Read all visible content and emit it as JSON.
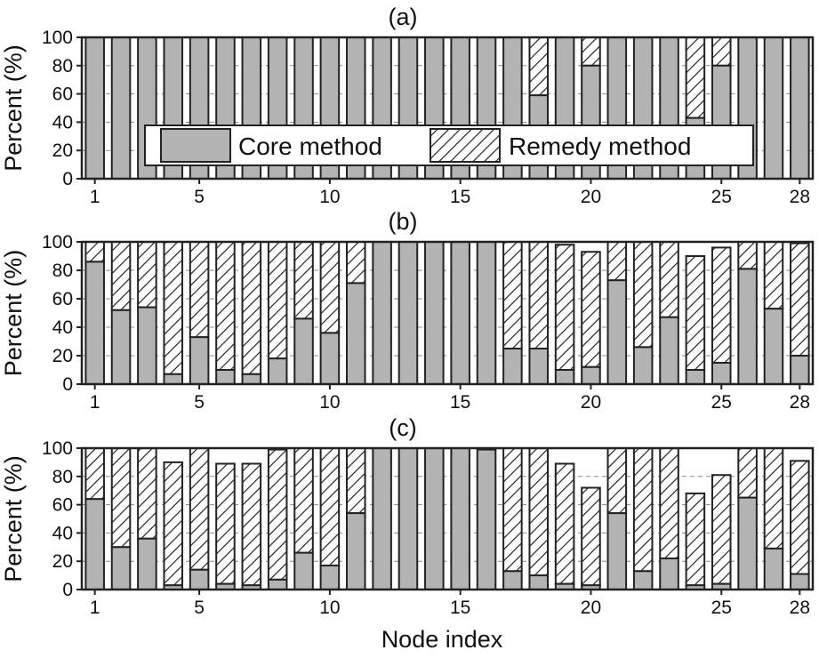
{
  "figure": {
    "xlabel": "Node index",
    "colors": {
      "core": "#b3b3b3",
      "remedy_bg": "#ffffff",
      "hatch": "#222222",
      "axis": "#222222",
      "grid": "#888888"
    }
  },
  "legend": {
    "core_label": "Core method",
    "remedy_label": "Remedy method"
  },
  "chart_data": [
    {
      "type": "bar",
      "stacked": true,
      "title": "(a)",
      "ylabel": "Percent (%)",
      "xlabel": "",
      "ylim": [
        0,
        100
      ],
      "yticks": [
        0,
        20,
        40,
        60,
        80,
        100
      ],
      "xticks": [
        1,
        5,
        10,
        15,
        20,
        25,
        28
      ],
      "grid": "horizontal dashed",
      "legend_position": "lower-center",
      "x": [
        1,
        2,
        3,
        4,
        5,
        6,
        7,
        8,
        9,
        10,
        11,
        12,
        13,
        14,
        15,
        16,
        17,
        18,
        19,
        20,
        21,
        22,
        23,
        24,
        25,
        26,
        27,
        28
      ],
      "series": [
        {
          "name": "Core method",
          "values": [
            100,
            100,
            100,
            100,
            100,
            100,
            100,
            100,
            100,
            100,
            100,
            100,
            100,
            100,
            100,
            100,
            100,
            59,
            100,
            80,
            100,
            100,
            100,
            43,
            80,
            100,
            100,
            100
          ]
        },
        {
          "name": "Remedy method",
          "values": [
            0,
            0,
            0,
            0,
            0,
            0,
            0,
            0,
            0,
            0,
            0,
            0,
            0,
            0,
            0,
            0,
            0,
            41,
            0,
            20,
            0,
            0,
            0,
            57,
            20,
            0,
            0,
            0
          ]
        }
      ]
    },
    {
      "type": "bar",
      "stacked": true,
      "title": "(b)",
      "ylabel": "Percent (%)",
      "xlabel": "",
      "ylim": [
        0,
        100
      ],
      "yticks": [
        0,
        20,
        40,
        60,
        80,
        100
      ],
      "xticks": [
        1,
        5,
        10,
        15,
        20,
        25,
        28
      ],
      "grid": "horizontal dashed",
      "x": [
        1,
        2,
        3,
        4,
        5,
        6,
        7,
        8,
        9,
        10,
        11,
        12,
        13,
        14,
        15,
        16,
        17,
        18,
        19,
        20,
        21,
        22,
        23,
        24,
        25,
        26,
        27,
        28
      ],
      "series": [
        {
          "name": "Core method",
          "values": [
            86,
            52,
            54,
            7,
            33,
            10,
            7,
            18,
            46,
            36,
            71,
            100,
            100,
            100,
            100,
            100,
            25,
            25,
            10,
            12,
            73,
            26,
            47,
            10,
            15,
            81,
            53,
            20
          ]
        },
        {
          "name": "Remedy method",
          "values": [
            14,
            48,
            46,
            93,
            67,
            90,
            93,
            82,
            54,
            64,
            29,
            0,
            0,
            0,
            0,
            0,
            75,
            75,
            88,
            81,
            27,
            74,
            53,
            80,
            81,
            19,
            47,
            79
          ]
        }
      ]
    },
    {
      "type": "bar",
      "stacked": true,
      "title": "(c)",
      "ylabel": "Percent (%)",
      "xlabel": "Node index",
      "ylim": [
        0,
        100
      ],
      "yticks": [
        0,
        20,
        40,
        60,
        80,
        100
      ],
      "xticks": [
        1,
        5,
        10,
        15,
        20,
        25,
        28
      ],
      "grid": "horizontal dashed",
      "x": [
        1,
        2,
        3,
        4,
        5,
        6,
        7,
        8,
        9,
        10,
        11,
        12,
        13,
        14,
        15,
        16,
        17,
        18,
        19,
        20,
        21,
        22,
        23,
        24,
        25,
        26,
        27,
        28
      ],
      "series": [
        {
          "name": "Core method",
          "values": [
            64,
            30,
            36,
            3,
            14,
            4,
            3,
            7,
            26,
            17,
            54,
            100,
            100,
            100,
            100,
            99,
            13,
            10,
            4,
            3,
            54,
            13,
            22,
            3,
            4,
            65,
            29,
            11
          ]
        },
        {
          "name": "Remedy method",
          "values": [
            36,
            70,
            64,
            87,
            86,
            85,
            86,
            92,
            74,
            83,
            46,
            0,
            0,
            0,
            0,
            0,
            87,
            90,
            85,
            69,
            46,
            87,
            78,
            65,
            77,
            35,
            71,
            80
          ]
        }
      ]
    }
  ]
}
